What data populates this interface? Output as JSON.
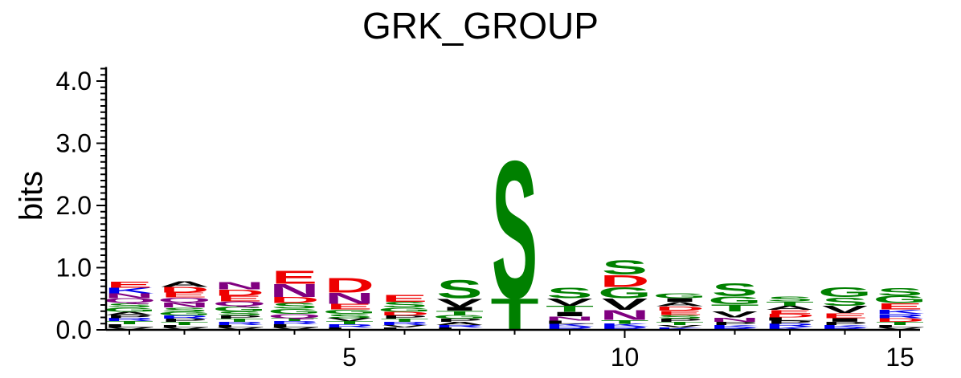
{
  "chart_data": {
    "type": "sequence-logo",
    "title": "GRK_GROUP",
    "xlabel": "",
    "ylabel": "bits",
    "ylim": [
      0,
      4.2
    ],
    "y_ticks": [
      "0.0",
      "1.0",
      "2.0",
      "3.0",
      "4.0"
    ],
    "y_tick_values": [
      0,
      1,
      2,
      3,
      4
    ],
    "x_ticks": [
      "5",
      "10",
      "15"
    ],
    "x_tick_values": [
      5,
      10,
      15
    ],
    "xlim": [
      0.7,
      15.4
    ],
    "grid": false,
    "colors": {
      "acidic": "#ee0000",
      "basic": "#0000ee",
      "polar": "#008000",
      "amide": "#800080",
      "hydrophobic": "#000000"
    },
    "positions": [
      {
        "pos": 1,
        "letters": [
          {
            "aa": "V",
            "height": 0.04
          },
          {
            "aa": "L",
            "height": 0.05
          },
          {
            "aa": "T",
            "height": 0.05
          },
          {
            "aa": "R",
            "height": 0.05
          },
          {
            "aa": "P",
            "height": 0.05
          },
          {
            "aa": "A",
            "height": 0.05
          },
          {
            "aa": "G",
            "height": 0.07
          },
          {
            "aa": "S",
            "height": 0.07
          },
          {
            "aa": "Q",
            "height": 0.08
          },
          {
            "aa": "N",
            "height": 0.08
          },
          {
            "aa": "K",
            "height": 0.09
          },
          {
            "aa": "E",
            "height": 0.1
          }
        ]
      },
      {
        "pos": 2,
        "letters": [
          {
            "aa": "V",
            "height": 0.04
          },
          {
            "aa": "L",
            "height": 0.04
          },
          {
            "aa": "T",
            "height": 0.05
          },
          {
            "aa": "P",
            "height": 0.05
          },
          {
            "aa": "R",
            "height": 0.05
          },
          {
            "aa": "G",
            "height": 0.06
          },
          {
            "aa": "S",
            "height": 0.07
          },
          {
            "aa": "N",
            "height": 0.08
          },
          {
            "aa": "Q",
            "height": 0.08
          },
          {
            "aa": "E",
            "height": 0.08
          },
          {
            "aa": "D",
            "height": 0.09
          },
          {
            "aa": "A",
            "height": 0.09
          }
        ]
      },
      {
        "pos": 3,
        "letters": [
          {
            "aa": "V",
            "height": 0.04
          },
          {
            "aa": "L",
            "height": 0.04
          },
          {
            "aa": "R",
            "height": 0.05
          },
          {
            "aa": "T",
            "height": 0.05
          },
          {
            "aa": "P",
            "height": 0.05
          },
          {
            "aa": "S",
            "height": 0.07
          },
          {
            "aa": "G",
            "height": 0.08
          },
          {
            "aa": "Q",
            "height": 0.08
          },
          {
            "aa": "E",
            "height": 0.09
          },
          {
            "aa": "D",
            "height": 0.1
          },
          {
            "aa": "N",
            "height": 0.12
          }
        ]
      },
      {
        "pos": 4,
        "letters": [
          {
            "aa": "V",
            "height": 0.04
          },
          {
            "aa": "L",
            "height": 0.05
          },
          {
            "aa": "R",
            "height": 0.05
          },
          {
            "aa": "T",
            "height": 0.05
          },
          {
            "aa": "Q",
            "height": 0.07
          },
          {
            "aa": "G",
            "height": 0.08
          },
          {
            "aa": "S",
            "height": 0.09
          },
          {
            "aa": "D",
            "height": 0.1
          },
          {
            "aa": "N",
            "height": 0.21
          },
          {
            "aa": "E",
            "height": 0.21
          }
        ]
      },
      {
        "pos": 5,
        "letters": [
          {
            "aa": "L",
            "height": 0.04
          },
          {
            "aa": "R",
            "height": 0.05
          },
          {
            "aa": "T",
            "height": 0.05
          },
          {
            "aa": "V",
            "height": 0.05
          },
          {
            "aa": "S",
            "height": 0.07
          },
          {
            "aa": "G",
            "height": 0.07
          },
          {
            "aa": "E",
            "height": 0.09
          },
          {
            "aa": "N",
            "height": 0.18
          },
          {
            "aa": "D",
            "height": 0.24
          }
        ]
      },
      {
        "pos": 6,
        "letters": [
          {
            "aa": "L",
            "height": 0.04
          },
          {
            "aa": "V",
            "height": 0.04
          },
          {
            "aa": "R",
            "height": 0.05
          },
          {
            "aa": "T",
            "height": 0.05
          },
          {
            "aa": "P",
            "height": 0.05
          },
          {
            "aa": "D",
            "height": 0.06
          },
          {
            "aa": "G",
            "height": 0.07
          },
          {
            "aa": "S",
            "height": 0.09
          },
          {
            "aa": "E",
            "height": 0.11
          }
        ]
      },
      {
        "pos": 7,
        "letters": [
          {
            "aa": "L",
            "height": 0.04
          },
          {
            "aa": "R",
            "height": 0.04
          },
          {
            "aa": "A",
            "height": 0.05
          },
          {
            "aa": "P",
            "height": 0.05
          },
          {
            "aa": "G",
            "height": 0.06
          },
          {
            "aa": "T",
            "height": 0.07
          },
          {
            "aa": "I",
            "height": 0.06
          },
          {
            "aa": "V",
            "height": 0.14
          },
          {
            "aa": "S",
            "height": 0.3
          }
        ]
      },
      {
        "pos": 8,
        "letters": [
          {
            "aa": "T",
            "height": 0.52
          },
          {
            "aa": "S",
            "height": 2.26
          }
        ]
      },
      {
        "pos": 9,
        "letters": [
          {
            "aa": "R",
            "height": 0.05
          },
          {
            "aa": "K",
            "height": 0.05
          },
          {
            "aa": "L",
            "height": 0.05
          },
          {
            "aa": "N",
            "height": 0.07
          },
          {
            "aa": "I",
            "height": 0.07
          },
          {
            "aa": "T",
            "height": 0.1
          },
          {
            "aa": "V",
            "height": 0.12
          },
          {
            "aa": "S",
            "height": 0.17
          }
        ]
      },
      {
        "pos": 10,
        "letters": [
          {
            "aa": "R",
            "height": 0.05
          },
          {
            "aa": "K",
            "height": 0.05
          },
          {
            "aa": "T",
            "height": 0.06
          },
          {
            "aa": "N",
            "height": 0.16
          },
          {
            "aa": "V",
            "height": 0.19
          },
          {
            "aa": "G",
            "height": 0.18
          },
          {
            "aa": "D",
            "height": 0.2
          },
          {
            "aa": "S",
            "height": 0.23
          }
        ]
      },
      {
        "pos": 11,
        "letters": [
          {
            "aa": "K",
            "height": 0.04
          },
          {
            "aa": "V",
            "height": 0.04
          },
          {
            "aa": "T",
            "height": 0.05
          },
          {
            "aa": "P",
            "height": 0.05
          },
          {
            "aa": "S",
            "height": 0.06
          },
          {
            "aa": "E",
            "height": 0.07
          },
          {
            "aa": "D",
            "height": 0.07
          },
          {
            "aa": "A",
            "height": 0.07
          },
          {
            "aa": "I",
            "height": 0.06
          },
          {
            "aa": "G",
            "height": 0.08
          }
        ]
      },
      {
        "pos": 12,
        "letters": [
          {
            "aa": "R",
            "height": 0.04
          },
          {
            "aa": "K",
            "height": 0.04
          },
          {
            "aa": "P",
            "height": 0.05
          },
          {
            "aa": "N",
            "height": 0.07
          },
          {
            "aa": "V",
            "height": 0.1
          },
          {
            "aa": "T",
            "height": 0.11
          },
          {
            "aa": "G",
            "height": 0.13
          },
          {
            "aa": "S",
            "height": 0.21
          }
        ]
      },
      {
        "pos": 13,
        "letters": [
          {
            "aa": "K",
            "height": 0.05
          },
          {
            "aa": "R",
            "height": 0.05
          },
          {
            "aa": "P",
            "height": 0.05
          },
          {
            "aa": "L",
            "height": 0.05
          },
          {
            "aa": "D",
            "height": 0.06
          },
          {
            "aa": "E",
            "height": 0.06
          },
          {
            "aa": "A",
            "height": 0.07
          },
          {
            "aa": "T",
            "height": 0.07
          },
          {
            "aa": "S",
            "height": 0.08
          }
        ]
      },
      {
        "pos": 14,
        "letters": [
          {
            "aa": "R",
            "height": 0.04
          },
          {
            "aa": "K",
            "height": 0.04
          },
          {
            "aa": "P",
            "height": 0.05
          },
          {
            "aa": "I",
            "height": 0.06
          },
          {
            "aa": "E",
            "height": 0.08
          },
          {
            "aa": "V",
            "height": 0.12
          },
          {
            "aa": "S",
            "height": 0.14
          },
          {
            "aa": "G",
            "height": 0.16
          }
        ]
      },
      {
        "pos": 15,
        "letters": [
          {
            "aa": "V",
            "height": 0.04
          },
          {
            "aa": "L",
            "height": 0.04
          },
          {
            "aa": "T",
            "height": 0.05
          },
          {
            "aa": "D",
            "height": 0.06
          },
          {
            "aa": "R",
            "height": 0.07
          },
          {
            "aa": "K",
            "height": 0.07
          },
          {
            "aa": "E",
            "height": 0.1
          },
          {
            "aa": "G",
            "height": 0.12
          },
          {
            "aa": "S",
            "height": 0.13
          }
        ]
      }
    ]
  }
}
